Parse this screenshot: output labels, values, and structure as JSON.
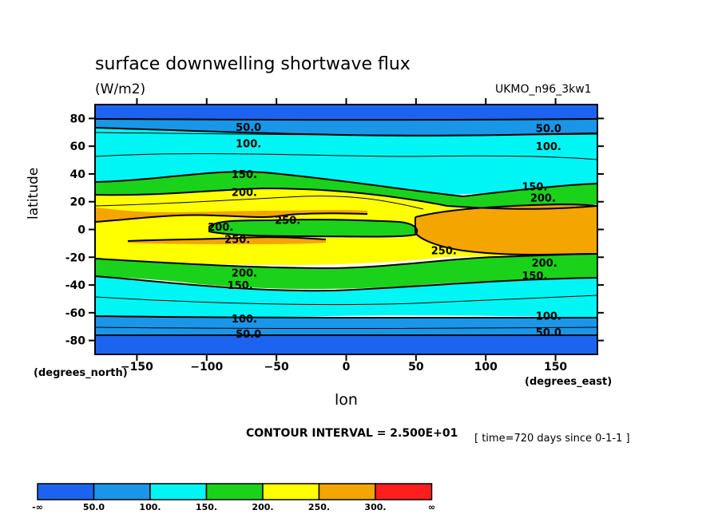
{
  "header": {
    "title": "surface downwelling shortwave flux",
    "units": "(W/m2)",
    "model": "UKMO_n96_3kw1"
  },
  "axes": {
    "ylabel": "latitude",
    "xlabel": "lon",
    "y_unit": "(degrees_north)",
    "x_unit": "(degrees_east)"
  },
  "footer": {
    "contour_interval": "CONTOUR INTERVAL = 2.500E+01",
    "time": "[ time=720 days since 0-1-1 ]"
  },
  "colors": {
    "lt50": "#1c64f0",
    "50_100": "#1a96e8",
    "100_150": "#00f5f5",
    "150_200": "#1ad21a",
    "200_250": "#ffff00",
    "250_300": "#f5a500",
    "gt300": "#ff1e1e"
  },
  "chart_data": {
    "type": "heatmap",
    "x_range": [
      -180,
      180
    ],
    "y_range": [
      -90,
      90
    ],
    "x_ticks": [
      -150,
      -100,
      -50,
      0,
      50,
      100,
      150
    ],
    "y_ticks": [
      80,
      60,
      40,
      20,
      0,
      -20,
      -40,
      -60,
      -80
    ],
    "x_tick_labels": [
      "-150",
      "-100",
      "-50",
      "0",
      "50",
      "100",
      "150"
    ],
    "y_tick_labels": [
      "80",
      "60",
      "40",
      "20",
      "0",
      "-20",
      "-40",
      "-60",
      "-80"
    ],
    "levels": [
      "-∞",
      "50.0",
      "100.",
      "150.",
      "200.",
      "250.",
      "300.",
      "∞"
    ],
    "colorbar_colors": [
      "#1c64f0",
      "#1a96e8",
      "#00f5f5",
      "#1ad21a",
      "#ffff00",
      "#f5a500",
      "#ff1e1e"
    ],
    "bands": [
      {
        "lat_from": 90,
        "lat_to": 79,
        "level": "<50"
      },
      {
        "lat_from": 79,
        "lat_to": 64,
        "level": "50-100"
      },
      {
        "lat_from": 64,
        "lat_to": 34,
        "level": "100-150"
      },
      {
        "lat_from": 34,
        "lat_to": 24,
        "level": "150-200"
      },
      {
        "lat_from": 24,
        "lat_to": -24,
        "level": "200-250"
      },
      {
        "lat_from": -24,
        "lat_to": -35,
        "level": "150-200"
      },
      {
        "lat_from": -35,
        "lat_to": -63,
        "level": "100-150"
      },
      {
        "lat_from": -63,
        "lat_to": -75,
        "level": "50-100"
      },
      {
        "lat_from": -75,
        "lat_to": -90,
        "level": "<50"
      }
    ],
    "contour_labels": [
      {
        "text": "50.0",
        "lon": -70,
        "lat": 74
      },
      {
        "text": "50.0",
        "lon": 145,
        "lat": 73
      },
      {
        "text": "100.",
        "lon": -70,
        "lat": 62
      },
      {
        "text": "100.",
        "lon": 145,
        "lat": 60
      },
      {
        "text": "150.",
        "lon": -73,
        "lat": 40
      },
      {
        "text": "150.",
        "lon": 135,
        "lat": 31
      },
      {
        "text": "200.",
        "lon": -73,
        "lat": 27
      },
      {
        "text": "200.",
        "lon": 141,
        "lat": 23
      },
      {
        "text": "250.",
        "lon": -42,
        "lat": 7
      },
      {
        "text": "200.",
        "lon": -90,
        "lat": 2
      },
      {
        "text": "250.",
        "lon": -78,
        "lat": -7
      },
      {
        "text": "250.",
        "lon": 70,
        "lat": -15
      },
      {
        "text": "200.",
        "lon": 142,
        "lat": -24
      },
      {
        "text": "200.",
        "lon": -73,
        "lat": -31
      },
      {
        "text": "150.",
        "lon": 135,
        "lat": -33
      },
      {
        "text": "150.",
        "lon": -76,
        "lat": -40
      },
      {
        "text": "100.",
        "lon": -73,
        "lat": -64
      },
      {
        "text": "100.",
        "lon": 145,
        "lat": -62
      },
      {
        "text": "50.0",
        "lon": -70,
        "lat": -75
      },
      {
        "text": "50.0",
        "lon": 145,
        "lat": -74
      }
    ]
  }
}
